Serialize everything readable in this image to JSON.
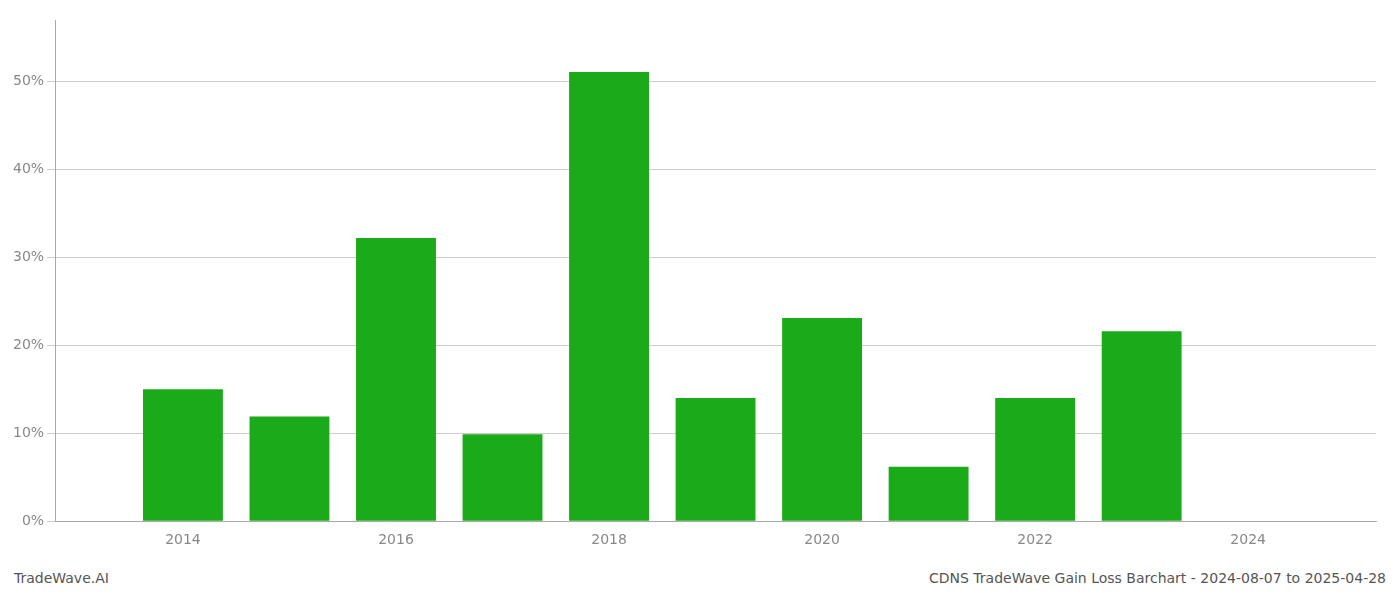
{
  "chart_data": {
    "type": "bar",
    "title": "CDNS TradeWave Gain Loss Barchart - 2024-08-07 to 2025-04-28",
    "annotations": [
      "TradeWave.AI"
    ],
    "x": [
      2014,
      2015,
      2016,
      2017,
      2018,
      2019,
      2020,
      2021,
      2022,
      2023
    ],
    "values": [
      0.15,
      0.119,
      0.322,
      0.099,
      0.511,
      0.14,
      0.231,
      0.062,
      0.14,
      0.216
    ],
    "color": "#1aaa1a",
    "xlim": [
      2012.8,
      2025.2
    ],
    "xticks": [
      2014,
      2016,
      2018,
      2020,
      2022,
      2024
    ],
    "ylim": [
      0,
      0.57
    ],
    "yticks": [
      {
        "value": 0.0,
        "label": "0%"
      },
      {
        "value": 0.1,
        "label": "10%"
      },
      {
        "value": 0.2,
        "label": "20%"
      },
      {
        "value": 0.3,
        "label": "30%"
      },
      {
        "value": 0.4,
        "label": "40%"
      },
      {
        "value": 0.5,
        "label": "50%"
      }
    ],
    "grid": true
  }
}
